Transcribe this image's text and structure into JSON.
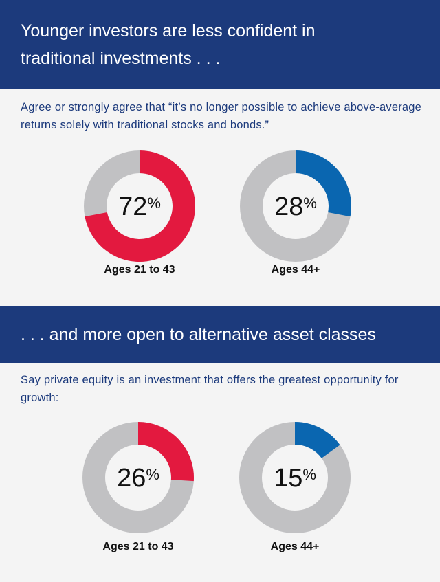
{
  "chart_data": [
    {
      "type": "donut",
      "title": "Younger investors are less confident in traditional investments . . .",
      "subtitle": "Agree or strongly agree that “it’s no longer possible to achieve above-average returns solely with traditional stocks and bonds.”",
      "categories": [
        "Ages 21 to 43",
        "Ages 44+"
      ],
      "values": [
        72,
        28
      ],
      "value_labels": [
        "72%",
        "28%"
      ],
      "colors": [
        "#e3193f",
        "#0a66b0"
      ],
      "remainder_color": "#c1c1c3"
    },
    {
      "type": "donut",
      "title": ". . . and more open to alternative asset classes",
      "subtitle": "Say private equity is an investment that offers the greatest opportunity for growth:",
      "categories": [
        "Ages 21 to 43",
        "Ages 44+"
      ],
      "values": [
        26,
        15
      ],
      "value_labels": [
        "26%",
        "15%"
      ],
      "colors": [
        "#e3193f",
        "#0a66b0"
      ],
      "remainder_color": "#c1c1c3"
    }
  ]
}
